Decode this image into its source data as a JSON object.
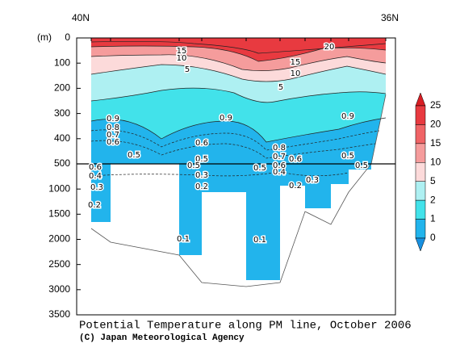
{
  "chart_data": {
    "type": "contour",
    "title": "Potential Temperature along PM line, October 2006",
    "credit": "(C) Japan Meteorological Agency",
    "ylabel": "(m)",
    "x_start_label": "40N",
    "x_end_label": "36N",
    "ylim": [
      0,
      3500
    ],
    "ybreak": 500,
    "yticks": [
      0,
      100,
      200,
      300,
      400,
      500,
      1000,
      1500,
      2000,
      2500,
      3000,
      3500
    ],
    "colorbar": {
      "ticks": [
        25,
        20,
        15,
        10,
        5,
        2,
        1,
        0
      ],
      "colors": [
        "#d81e24",
        "#e83a40",
        "#f06466",
        "#f59c9c",
        "#fcdada",
        "#aef0f2",
        "#42e2ea",
        "#22b4ec",
        "#1890e0"
      ]
    },
    "contour_labels": [
      15,
      10,
      5,
      20,
      15,
      10,
      5,
      0.9,
      0.8,
      0.7,
      0.6,
      0.5,
      0.9,
      0.6,
      0.5,
      0.8,
      0.7,
      0.6,
      0.5,
      0.9,
      0.5,
      0.4,
      0.3,
      0.2,
      0.3,
      0.2,
      0.5,
      0.6,
      0.4,
      0.3,
      0.2,
      0.1,
      0.1,
      0.5,
      0.6
    ]
  }
}
